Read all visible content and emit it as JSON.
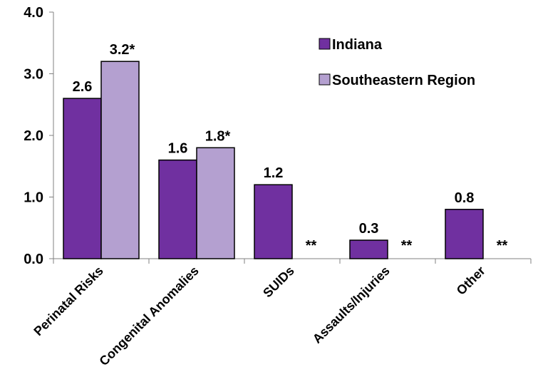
{
  "chart_data": {
    "type": "bar",
    "title": "",
    "xlabel": "",
    "ylabel": "",
    "ylim": [
      0,
      4.0
    ],
    "yticks": [
      "0.0",
      "1.0",
      "2.0",
      "3.0",
      "4.0"
    ],
    "grid": false,
    "legend_position": "top-right",
    "categories": [
      "Perinatal Risks",
      "Congenital Anomalies",
      "SUIDs",
      "Assaults/Injuries",
      "Other"
    ],
    "series": [
      {
        "name": "Indiana",
        "color": "#7030A0",
        "values": [
          2.6,
          1.6,
          1.2,
          0.3,
          0.8
        ],
        "labels": [
          "2.6",
          "1.6",
          "1.2",
          "0.3",
          "0.8"
        ]
      },
      {
        "name": "Southeastern Region",
        "color": "#B4A0D0",
        "values": [
          3.2,
          1.8,
          null,
          null,
          null
        ],
        "labels": [
          "3.2*",
          "1.8*",
          "**",
          "**",
          "**"
        ]
      }
    ]
  }
}
